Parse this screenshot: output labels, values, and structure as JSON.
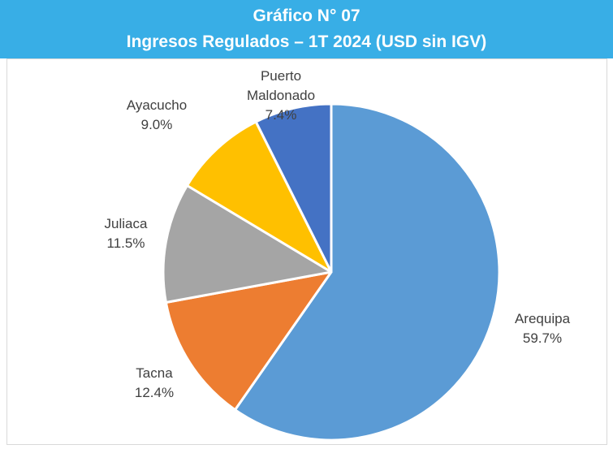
{
  "chart_data": {
    "type": "pie",
    "title": [
      "Gráfico N° 07",
      "Ingresos Regulados – 1T 2024 (USD sin IGV)"
    ],
    "categories": [
      "Arequipa",
      "Tacna",
      "Juliaca",
      "Ayacucho",
      "Puerto Maldonado"
    ],
    "values": [
      59.7,
      12.4,
      11.5,
      9.0,
      7.4
    ],
    "value_labels": [
      "59.7%",
      "12.4%",
      "11.5%",
      "9.0%",
      "7.4%"
    ],
    "colors": [
      "#5b9bd5",
      "#ed7d31",
      "#a5a5a5",
      "#ffc000",
      "#4472c4"
    ]
  }
}
